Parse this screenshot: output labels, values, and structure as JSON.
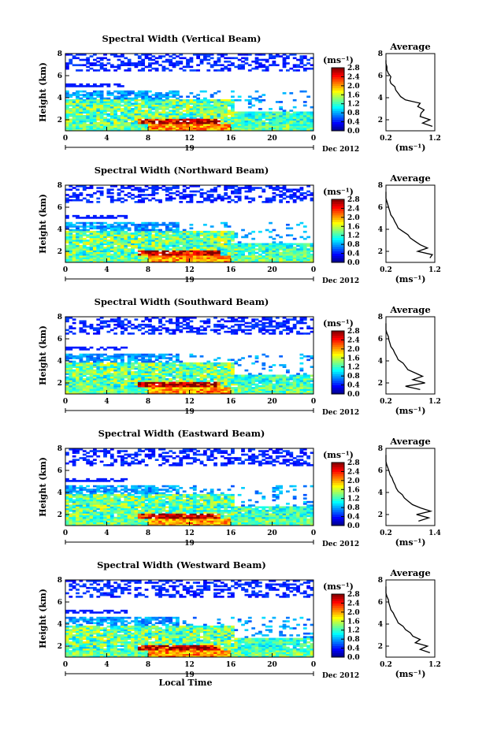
{
  "chart_data": [
    {
      "type": "heatmap",
      "title": "Spectral Width (Vertical Beam)",
      "ylabel": "Height (km)",
      "xticks": [
        "0",
        "4",
        "8",
        "12",
        "16",
        "20",
        "0"
      ],
      "date_marker": "19",
      "date_label": "Dec 2012",
      "xlim": [
        0,
        24
      ],
      "ylim": [
        1,
        8
      ],
      "colorbar": {
        "unit": "(ms⁻¹)",
        "ticks": [
          "0.0",
          "0.4",
          "0.8",
          "1.2",
          "1.6",
          "2.0",
          "2.4",
          "2.8"
        ],
        "range": [
          0,
          2.8
        ]
      },
      "profile": {
        "title": "Average",
        "xlabel": "(ms⁻¹)",
        "xticks": [
          "0.2",
          "1.2"
        ],
        "xlim": [
          0.2,
          1.2
        ],
        "yticks": [
          "2",
          "4",
          "6",
          "8"
        ],
        "ylim": [
          1,
          8
        ],
        "heights": [
          1.4,
          1.7,
          2.0,
          2.3,
          2.6,
          2.9,
          3.2,
          3.5,
          3.8,
          4.1,
          4.4,
          4.7,
          5.0,
          5.3,
          5.6,
          5.9,
          6.2,
          6.5,
          6.8,
          7.1,
          7.4
        ],
        "values": [
          1.15,
          0.95,
          1.1,
          0.9,
          0.92,
          0.98,
          0.85,
          0.9,
          0.6,
          0.5,
          0.45,
          0.4,
          0.38,
          0.3,
          0.28,
          0.3,
          0.25,
          0.22,
          0.22,
          0.2,
          0.2
        ]
      }
    },
    {
      "type": "heatmap",
      "title": "Spectral Width (Northward Beam)",
      "ylabel": "Height (km)",
      "xticks": [
        "0",
        "4",
        "8",
        "12",
        "16",
        "20",
        "0"
      ],
      "date_marker": "19",
      "date_label": "Dec 2012",
      "xlim": [
        0,
        24
      ],
      "ylim": [
        1,
        8
      ],
      "colorbar": {
        "unit": "(ms⁻¹)",
        "ticks": [
          "0.0",
          "0.4",
          "0.8",
          "1.2",
          "1.6",
          "2.0",
          "2.4",
          "2.8"
        ],
        "range": [
          0,
          2.8
        ]
      },
      "profile": {
        "title": "Average",
        "xlabel": "(ms⁻¹)",
        "xticks": [
          "0.2",
          "1.2"
        ],
        "xlim": [
          0.2,
          1.2
        ],
        "yticks": [
          "2",
          "4",
          "6",
          "8"
        ],
        "ylim": [
          1,
          8
        ],
        "heights": [
          1.4,
          1.7,
          2.0,
          2.3,
          2.6,
          2.9,
          3.2,
          3.5,
          3.8,
          4.1,
          4.4,
          4.7,
          5.0,
          5.3,
          5.6,
          5.9,
          6.2,
          6.5,
          6.8,
          7.1,
          7.4
        ],
        "values": [
          1.1,
          1.15,
          0.85,
          1.05,
          0.9,
          0.8,
          0.7,
          0.65,
          0.55,
          0.45,
          0.42,
          0.38,
          0.35,
          0.3,
          0.28,
          0.26,
          0.24,
          0.22,
          0.2,
          0.2,
          0.2
        ]
      }
    },
    {
      "type": "heatmap",
      "title": "Spectral Width (Southward Beam)",
      "ylabel": "Height (km)",
      "xticks": [
        "0",
        "4",
        "8",
        "12",
        "16",
        "20",
        "0"
      ],
      "date_marker": "19",
      "date_label": "Dec 2012",
      "xlim": [
        0,
        24
      ],
      "ylim": [
        1,
        8
      ],
      "colorbar": {
        "unit": "(ms⁻¹)",
        "ticks": [
          "0.0",
          "0.4",
          "0.8",
          "1.2",
          "1.6",
          "2.0",
          "2.4",
          "2.8"
        ],
        "range": [
          0,
          2.8
        ]
      },
      "profile": {
        "title": "Average",
        "xlabel": "(ms⁻¹)",
        "xticks": [
          "0.2",
          "1.2"
        ],
        "xlim": [
          0.2,
          1.2
        ],
        "yticks": [
          "2",
          "4",
          "6",
          "8"
        ],
        "ylim": [
          1,
          8
        ],
        "heights": [
          1.4,
          1.7,
          2.0,
          2.3,
          2.6,
          2.9,
          3.2,
          3.5,
          3.8,
          4.1,
          4.4,
          4.7,
          5.0,
          5.3,
          5.6,
          5.9,
          6.2,
          6.5,
          6.8,
          7.1,
          7.4
        ],
        "values": [
          0.9,
          0.6,
          1.0,
          0.75,
          0.95,
          0.8,
          0.65,
          0.6,
          0.55,
          0.45,
          0.42,
          0.38,
          0.35,
          0.3,
          0.28,
          0.26,
          0.25,
          0.22,
          0.2,
          0.2,
          0.2
        ]
      }
    },
    {
      "type": "heatmap",
      "title": "Spectral Width (Eastward Beam)",
      "ylabel": "Height (km)",
      "xticks": [
        "0",
        "4",
        "8",
        "12",
        "16",
        "20",
        "0"
      ],
      "date_marker": "19",
      "date_label": "Dec 2012",
      "xlim": [
        0,
        24
      ],
      "ylim": [
        1,
        8
      ],
      "colorbar": {
        "unit": "(ms⁻¹)",
        "ticks": [
          "0.0",
          "0.4",
          "0.8",
          "1.2",
          "1.6",
          "2.0",
          "2.4",
          "2.8"
        ],
        "range": [
          0,
          2.8
        ]
      },
      "profile": {
        "title": "Average",
        "xlabel": "(ms⁻¹)",
        "xticks": [
          "0.2",
          "1.4"
        ],
        "xlim": [
          0.2,
          1.4
        ],
        "yticks": [
          "2",
          "4",
          "6",
          "8"
        ],
        "ylim": [
          1,
          8
        ],
        "heights": [
          1.4,
          1.7,
          2.0,
          2.3,
          2.6,
          2.9,
          3.2,
          3.5,
          3.8,
          4.1,
          4.4,
          4.7,
          5.0,
          5.3,
          5.6,
          5.9,
          6.2,
          6.5,
          6.8,
          7.1,
          7.4
        ],
        "values": [
          1.0,
          1.25,
          0.95,
          1.3,
          1.05,
          0.85,
          0.75,
          0.65,
          0.6,
          0.5,
          0.45,
          0.42,
          0.38,
          0.35,
          0.3,
          0.28,
          0.25,
          0.22,
          0.2,
          0.2,
          0.2
        ]
      }
    },
    {
      "type": "heatmap",
      "title": "Spectral Width (Westward Beam)",
      "ylabel": "Height (km)",
      "xticks": [
        "0",
        "4",
        "8",
        "12",
        "16",
        "20",
        "0"
      ],
      "date_marker": "19",
      "date_label": "Dec 2012",
      "xlabel": "Local Time",
      "xlim": [
        0,
        24
      ],
      "ylim": [
        1,
        8
      ],
      "colorbar": {
        "unit": "(ms⁻¹)",
        "ticks": [
          "0.0",
          "0.4",
          "0.8",
          "1.2",
          "1.6",
          "2.0",
          "2.4",
          "2.8"
        ],
        "range": [
          0,
          2.8
        ]
      },
      "profile": {
        "title": "Average",
        "xlabel": "(ms⁻¹)",
        "xticks": [
          "0.2",
          "1.2"
        ],
        "xlim": [
          0.2,
          1.2
        ],
        "yticks": [
          "2",
          "4",
          "6",
          "8"
        ],
        "ylim": [
          1,
          8
        ],
        "heights": [
          1.4,
          1.7,
          2.0,
          2.3,
          2.6,
          2.9,
          3.2,
          3.5,
          3.8,
          4.1,
          4.4,
          4.7,
          5.0,
          5.3,
          5.6,
          5.9,
          6.2,
          6.5,
          6.8,
          7.1,
          7.4
        ],
        "values": [
          1.1,
          0.9,
          1.05,
          0.8,
          0.9,
          0.75,
          0.7,
          0.6,
          0.55,
          0.45,
          0.42,
          0.38,
          0.35,
          0.3,
          0.28,
          0.26,
          0.25,
          0.22,
          0.2,
          0.2,
          0.2
        ]
      }
    }
  ]
}
